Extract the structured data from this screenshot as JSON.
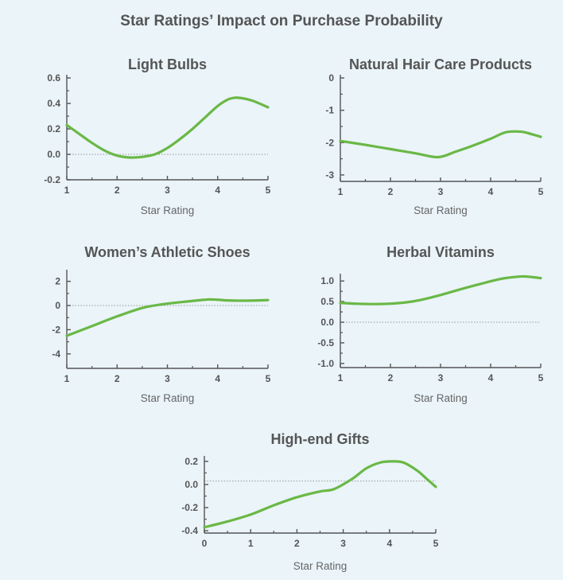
{
  "figure": {
    "title": "Star Ratings’ Impact on Purchase Probability",
    "background": "#eaf4f9",
    "line_color": "#6ab846",
    "axis_color": "#555555",
    "text_color": "#555555",
    "zero_line_color": "#9a9a9a"
  },
  "chart_data": [
    {
      "type": "line",
      "title": "Light Bulbs",
      "xlabel": "Star Rating",
      "ylabel": "",
      "xlim": [
        1,
        5
      ],
      "ylim": [
        -0.2,
        0.6
      ],
      "xticks": [
        1,
        2,
        3,
        4,
        5
      ],
      "yticks": [
        -0.2,
        0.0,
        0.2,
        0.4,
        0.6
      ],
      "ytick_labels": [
        "-0.2",
        "0.0",
        "0.2",
        "0.4",
        "0.6"
      ],
      "zero_line": 0,
      "grid": false,
      "x": [
        1.0,
        1.25,
        1.5,
        1.75,
        2.0,
        2.25,
        2.5,
        2.75,
        3.0,
        3.25,
        3.5,
        3.75,
        4.0,
        4.2,
        4.35,
        4.5,
        4.7,
        5.0
      ],
      "y": [
        0.23,
        0.16,
        0.09,
        0.03,
        -0.01,
        -0.025,
        -0.02,
        0.0,
        0.05,
        0.12,
        0.2,
        0.29,
        0.38,
        0.43,
        0.445,
        0.44,
        0.42,
        0.37
      ]
    },
    {
      "type": "line",
      "title": "Natural Hair Care Products",
      "xlabel": "Star Rating",
      "ylabel": "",
      "xlim": [
        1,
        5
      ],
      "ylim": [
        -3.2,
        0
      ],
      "xticks": [
        1,
        2,
        3,
        4,
        5
      ],
      "yticks": [
        -3,
        -2,
        -1,
        0
      ],
      "ytick_labels": [
        "-3",
        "-2",
        "-1",
        "0"
      ],
      "zero_line": null,
      "grid": false,
      "x": [
        1.0,
        1.5,
        2.0,
        2.5,
        2.95,
        3.3,
        3.6,
        4.0,
        4.3,
        4.6,
        4.8,
        5.0
      ],
      "y": [
        -1.95,
        -2.07,
        -2.2,
        -2.33,
        -2.45,
        -2.28,
        -2.12,
        -1.88,
        -1.68,
        -1.66,
        -1.73,
        -1.82
      ]
    },
    {
      "type": "line",
      "title": "Women’s Athletic Shoes",
      "xlabel": "Star Rating",
      "ylabel": "",
      "xlim": [
        1,
        5
      ],
      "ylim": [
        -5.2,
        2.7
      ],
      "xticks": [
        1,
        2,
        3,
        4,
        5
      ],
      "yticks": [
        -4,
        -2,
        0,
        2
      ],
      "ytick_labels": [
        "-4",
        "-2",
        "0",
        "2"
      ],
      "zero_line": 0,
      "grid": false,
      "x": [
        1.0,
        1.5,
        2.0,
        2.5,
        2.9,
        3.2,
        3.5,
        3.8,
        4.0,
        4.2,
        4.5,
        4.8,
        5.0
      ],
      "y": [
        -2.5,
        -1.7,
        -0.9,
        -0.2,
        0.1,
        0.25,
        0.38,
        0.5,
        0.48,
        0.42,
        0.4,
        0.42,
        0.45
      ]
    },
    {
      "type": "line",
      "title": "Herbal Vitamins",
      "xlabel": "Star Rating",
      "ylabel": "",
      "xlim": [
        1,
        5
      ],
      "ylim": [
        -1.1,
        1.1
      ],
      "xticks": [
        1,
        2,
        3,
        4,
        5
      ],
      "yticks": [
        -1.0,
        -0.5,
        0.0,
        0.5,
        1.0
      ],
      "ytick_labels": [
        "-1.0",
        "-0.5",
        "0.0",
        "0.5",
        "1.0"
      ],
      "zero_line": 0,
      "grid": false,
      "x": [
        1.0,
        1.3,
        1.7,
        2.0,
        2.3,
        2.6,
        3.0,
        3.4,
        3.8,
        4.2,
        4.5,
        4.7,
        5.0
      ],
      "y": [
        0.47,
        0.45,
        0.44,
        0.45,
        0.48,
        0.54,
        0.66,
        0.8,
        0.93,
        1.05,
        1.1,
        1.11,
        1.07
      ]
    },
    {
      "type": "line",
      "title": "High-end Gifts",
      "xlabel": "Star Rating",
      "ylabel": "",
      "xlim": [
        0,
        5
      ],
      "ylim": [
        -0.42,
        0.22
      ],
      "xticks": [
        0,
        1,
        2,
        3,
        4,
        5
      ],
      "yticks": [
        -0.4,
        -0.2,
        0.0,
        0.2
      ],
      "ytick_labels": [
        "-0.4",
        "-0.2",
        "0.0",
        "0.2"
      ],
      "zero_line": 0.03,
      "grid": false,
      "x": [
        0.0,
        0.5,
        1.0,
        1.5,
        2.0,
        2.5,
        2.8,
        3.2,
        3.5,
        3.8,
        4.05,
        4.3,
        4.6,
        4.8,
        5.0
      ],
      "y": [
        -0.37,
        -0.32,
        -0.26,
        -0.18,
        -0.11,
        -0.06,
        -0.04,
        0.05,
        0.14,
        0.19,
        0.2,
        0.19,
        0.12,
        0.05,
        -0.02
      ]
    }
  ]
}
